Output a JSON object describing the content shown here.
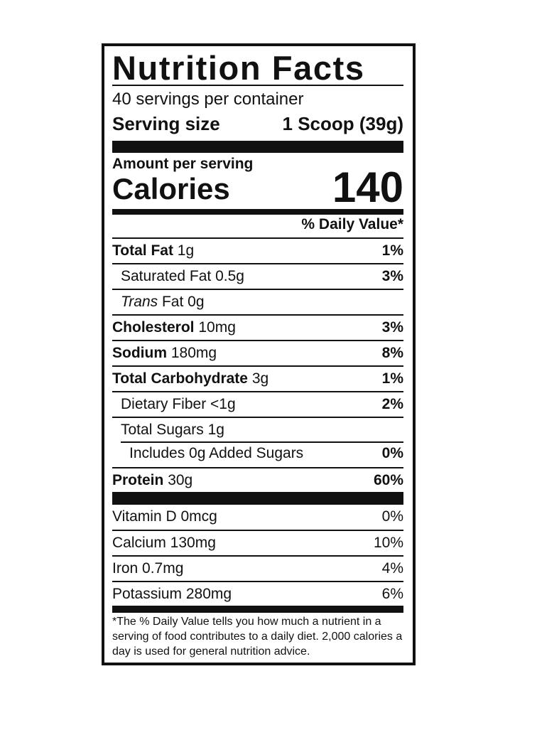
{
  "label": {
    "title": "Nutrition Facts",
    "servings": "40 servings per container",
    "serving_size": {
      "label": "Serving size",
      "value": "1 Scoop (39g)"
    },
    "amount_per_serving": "Amount per serving",
    "calories": {
      "label": "Calories",
      "value": "140"
    },
    "daily_value_header": "% Daily Value*",
    "nutrients": [
      {
        "name": "Total Fat",
        "amount": "1g",
        "dv": "1%"
      },
      {
        "name": "Saturated Fat",
        "amount": "0.5g",
        "dv": "3%"
      },
      {
        "name": "Trans",
        "amount": "Fat 0g"
      },
      {
        "name": "Cholesterol",
        "amount": "10mg",
        "dv": "3%"
      },
      {
        "name": "Sodium",
        "amount": "180mg",
        "dv": "8%"
      },
      {
        "name": "Total Carbohydrate",
        "amount": "3g",
        "dv": "1%"
      },
      {
        "name": "Dietary Fiber",
        "amount": "<1g",
        "dv": "2%"
      },
      {
        "name": "Total Sugars",
        "amount": "1g"
      },
      {
        "name": "Includes 0g Added Sugars",
        "dv": "0%"
      },
      {
        "name": "Protein",
        "amount": "30g",
        "dv": "60%"
      }
    ],
    "vitamins": [
      {
        "name": "Vitamin D 0mcg",
        "dv": "0%"
      },
      {
        "name": "Calcium 130mg",
        "dv": "10%"
      },
      {
        "name": "Iron 0.7mg",
        "dv": "4%"
      },
      {
        "name": "Potassium 280mg",
        "dv": "6%"
      }
    ],
    "footnote": "*The % Daily Value tells you how much a nutrient in a serving of food contributes to a daily diet. 2,000 calories a day is used for general nutrition advice."
  }
}
